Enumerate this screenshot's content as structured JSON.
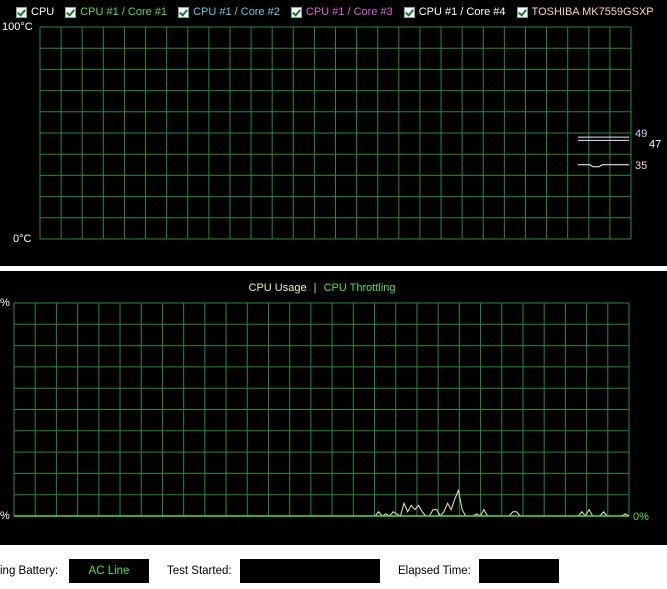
{
  "temperature_chart": {
    "sensors": [
      {
        "label": "CPU",
        "checked": true,
        "color": "#ffffff"
      },
      {
        "label": "CPU #1 / Core #1",
        "checked": true,
        "color": "#4ce04c"
      },
      {
        "label": "CPU #1 / Core #2",
        "checked": true,
        "color": "#5fd0e0"
      },
      {
        "label": "CPU #1 / Core #3",
        "checked": true,
        "color": "#e05ce0"
      },
      {
        "label": "CPU #1 / Core #4",
        "checked": true,
        "color": "#ffffff"
      },
      {
        "label": "TOSHIBA MK7559GSXP",
        "checked": true,
        "color": "#ffd8a8"
      }
    ],
    "y_max_label": "100°C",
    "y_min_label": "0°C",
    "ylim": [
      0,
      100
    ],
    "current_values": [
      {
        "text": "49",
        "value": 49,
        "color": "#c8d8ff"
      },
      {
        "text": "47",
        "value": 47,
        "color": "#ffffff"
      },
      {
        "text": "35",
        "value": 35,
        "color": "#ffd8a8"
      }
    ],
    "grid_color": "#1f8a3a"
  },
  "usage_chart": {
    "legend_usage": "CPU Usage",
    "legend_sep": "|",
    "legend_throttling": "CPU Throttling",
    "usage_color": "#f0f0a0",
    "throttling_color": "#4ce04c",
    "y_max_label": "%",
    "y_min_label": "%",
    "throttling_value_label": "0%",
    "ylim": [
      0,
      100
    ],
    "usage_samples": [
      0,
      2,
      0,
      1,
      0,
      2,
      1,
      0,
      6,
      2,
      5,
      3,
      5,
      2,
      0,
      0,
      3,
      3,
      0,
      2,
      6,
      3,
      8,
      12,
      3,
      0,
      0,
      0,
      1,
      0,
      3,
      0,
      0,
      0,
      0,
      0,
      0,
      0,
      2,
      2,
      0,
      0,
      0,
      0,
      0,
      0,
      0,
      0,
      0,
      0,
      0,
      0,
      0,
      0,
      0,
      0,
      0,
      2,
      0,
      3,
      0,
      0,
      0,
      2,
      0,
      0,
      0,
      0,
      0,
      1,
      0
    ]
  },
  "footer": {
    "battery_label": "ing Battery:",
    "battery_value": "AC Line",
    "test_started_label": "Test Started:",
    "test_started_value": "",
    "elapsed_label": "Elapsed Time:",
    "elapsed_value": ""
  }
}
